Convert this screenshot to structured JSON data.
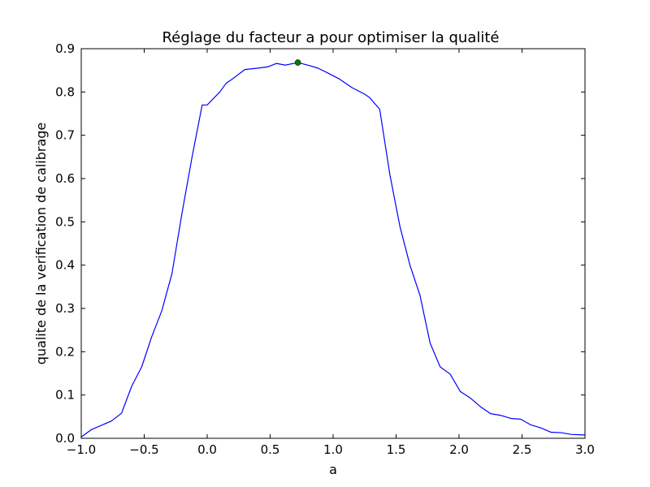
{
  "chart_data": {
    "type": "line",
    "title": "Réglage du facteur a pour optimiser la qualité",
    "xlabel": "a",
    "ylabel": "qualite de la verification de calibrage",
    "xlim": [
      -1.0,
      3.0
    ],
    "ylim": [
      0.0,
      0.9
    ],
    "grid": false,
    "legend": "none",
    "xticks": [
      "−1.0",
      "−0.5",
      "0.0",
      "0.5",
      "1.0",
      "1.5",
      "2.0",
      "2.5",
      "3.0"
    ],
    "xtick_values": [
      -1.0,
      -0.5,
      0.0,
      0.5,
      1.0,
      1.5,
      2.0,
      2.5,
      3.0
    ],
    "yticks": [
      "0.0",
      "0.1",
      "0.2",
      "0.3",
      "0.4",
      "0.5",
      "0.6",
      "0.7",
      "0.8",
      "0.9"
    ],
    "ytick_values": [
      0.0,
      0.1,
      0.2,
      0.3,
      0.4,
      0.5,
      0.6,
      0.7,
      0.8,
      0.9
    ],
    "series": [
      {
        "color": "#0000ff",
        "x": [
          -1.0,
          -0.92,
          -0.76,
          -0.68,
          -0.6,
          -0.52,
          -0.44,
          -0.36,
          -0.28,
          -0.2,
          -0.12,
          -0.04,
          0.0,
          0.1,
          0.15,
          0.2,
          0.3,
          0.4,
          0.48,
          0.55,
          0.62,
          0.72,
          0.8,
          0.88,
          0.95,
          1.05,
          1.15,
          1.25,
          1.29,
          1.37,
          1.45,
          1.53,
          1.61,
          1.69,
          1.77,
          1.85,
          1.93,
          2.01,
          2.09,
          2.17,
          2.25,
          2.33,
          2.41,
          2.49,
          2.57,
          2.65,
          2.73,
          2.81,
          2.89,
          2.97,
          3.0
        ],
        "y": [
          0.003,
          0.02,
          0.04,
          0.058,
          0.12,
          0.165,
          0.235,
          0.295,
          0.38,
          0.52,
          0.65,
          0.77,
          0.77,
          0.8,
          0.82,
          0.83,
          0.852,
          0.855,
          0.858,
          0.866,
          0.862,
          0.868,
          0.862,
          0.855,
          0.845,
          0.83,
          0.81,
          0.795,
          0.787,
          0.76,
          0.61,
          0.49,
          0.4,
          0.33,
          0.22,
          0.165,
          0.148,
          0.108,
          0.093,
          0.073,
          0.057,
          0.053,
          0.046,
          0.044,
          0.031,
          0.024,
          0.014,
          0.013,
          0.009,
          0.008,
          0.008
        ]
      }
    ],
    "marker": {
      "x": 0.72,
      "y": 0.868,
      "color": "#008000"
    }
  }
}
